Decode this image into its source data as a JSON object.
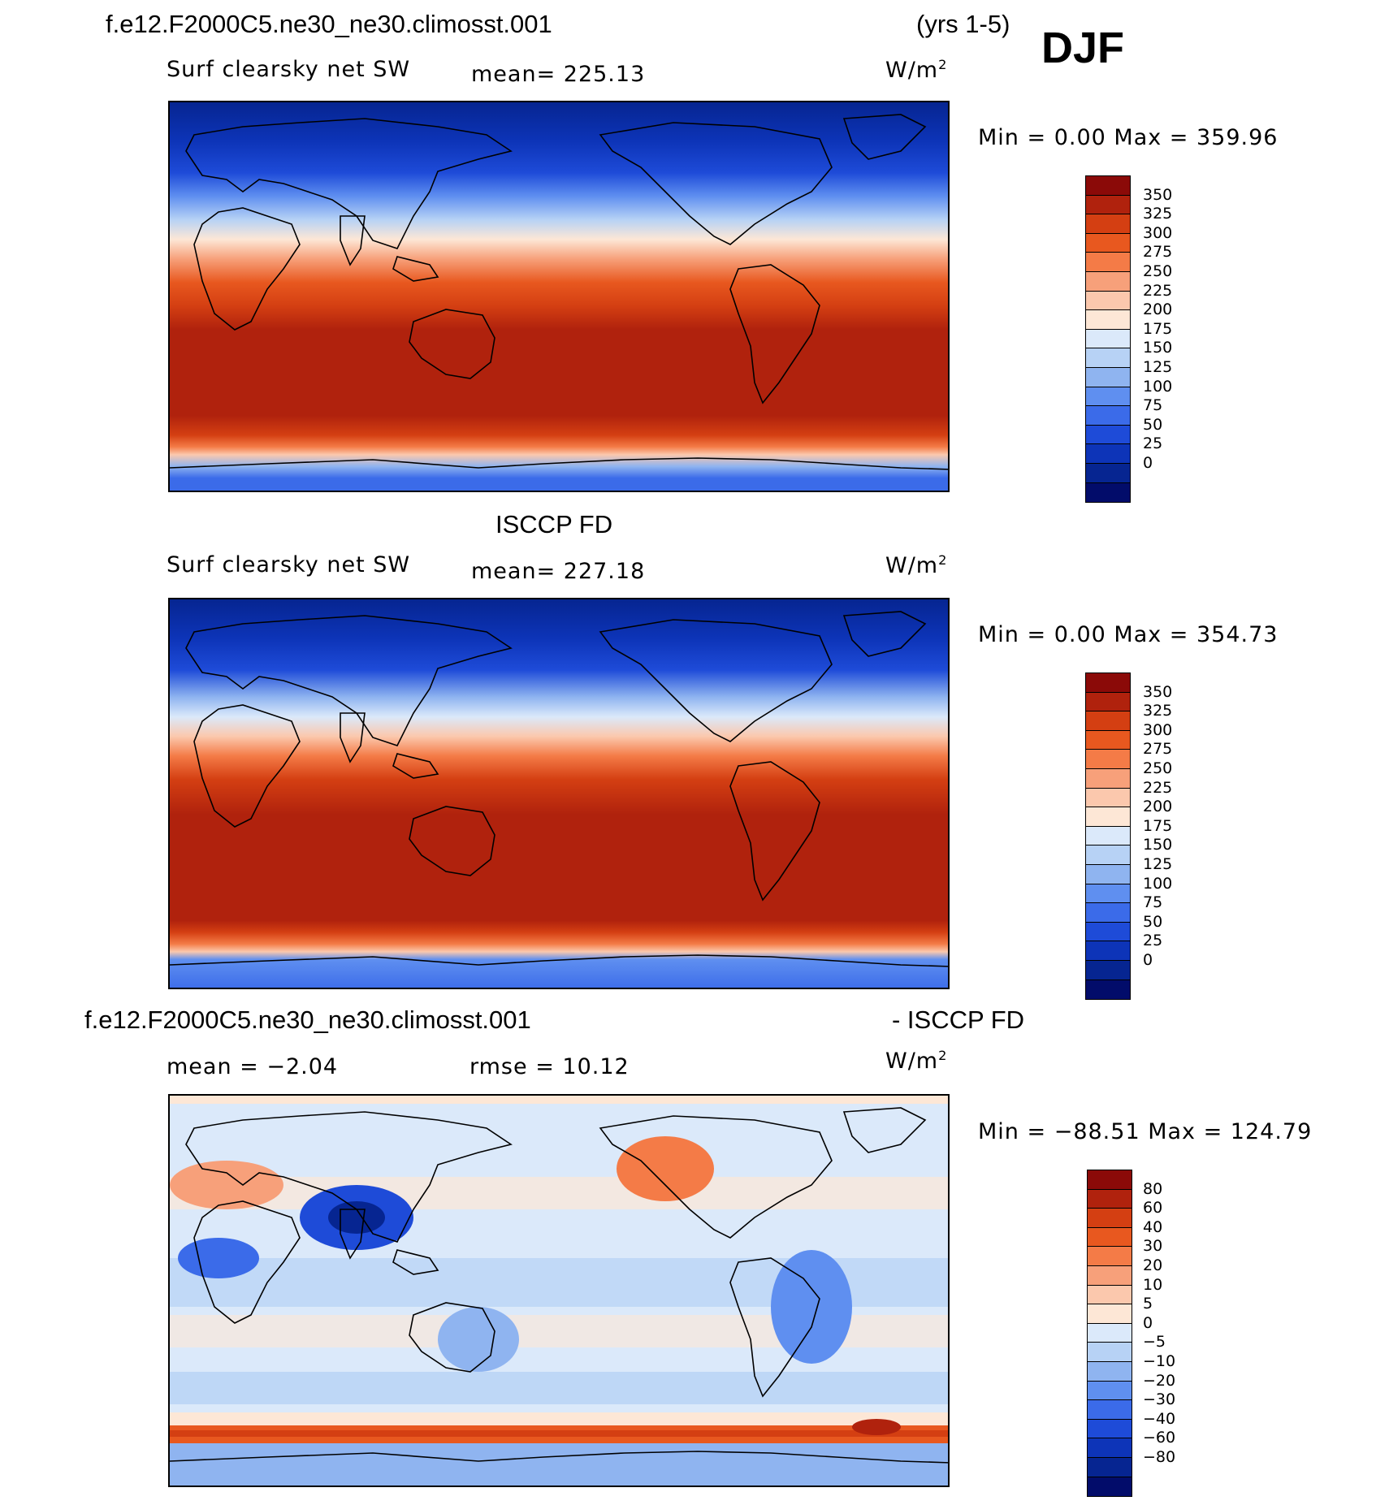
{
  "header": {
    "case_name": "f.e12.F2000C5.ne30_ne30.climosst.001",
    "years": "(yrs 1-5)",
    "season": "DJF"
  },
  "panels": [
    {
      "id": "model",
      "variable": "Surf clearsky net SW",
      "mean_text": "mean= 225.13",
      "units": "W/m",
      "units_exp": "2",
      "minmax_text": "Min =    0.00 Max = 359.96",
      "colorbar": {
        "colors": [
          "#8b0a08",
          "#b0220d",
          "#d43f12",
          "#e8581f",
          "#f47b47",
          "#f7a07a",
          "#fbc8ad",
          "#fde7d6",
          "#dbe9fa",
          "#b7d2f5",
          "#8fb4f0",
          "#5f8ff0",
          "#3b6be9",
          "#1e4bd8",
          "#0d34b8",
          "#062591",
          "#020c6a"
        ],
        "labels": [
          "350",
          "325",
          "300",
          "275",
          "250",
          "225",
          "200",
          "175",
          "150",
          "125",
          "100",
          "75",
          "50",
          "25",
          "0"
        ]
      }
    },
    {
      "id": "obs",
      "title": "ISCCP FD",
      "variable": "Surf clearsky net SW",
      "mean_text": "mean= 227.18",
      "units": "W/m",
      "units_exp": "2",
      "minmax_text": "Min =    0.00 Max = 354.73",
      "colorbar": {
        "colors": [
          "#8b0a08",
          "#b0220d",
          "#d43f12",
          "#e8581f",
          "#f47b47",
          "#f7a07a",
          "#fbc8ad",
          "#fde7d6",
          "#dbe9fa",
          "#b7d2f5",
          "#8fb4f0",
          "#5f8ff0",
          "#3b6be9",
          "#1e4bd8",
          "#0d34b8",
          "#062591",
          "#020c6a"
        ],
        "labels": [
          "350",
          "325",
          "300",
          "275",
          "250",
          "225",
          "200",
          "175",
          "150",
          "125",
          "100",
          "75",
          "50",
          "25",
          "0"
        ]
      }
    },
    {
      "id": "diff",
      "case_name": "f.e12.F2000C5.ne30_ne30.climosst.001",
      "minus_title": "- ISCCP FD",
      "mean_text": "mean =   −2.04",
      "rmse_text": "rmse =   10.12",
      "units": "W/m",
      "units_exp": "2",
      "minmax_text": "Min = −88.51  Max = 124.79",
      "colorbar": {
        "colors": [
          "#8b0a08",
          "#b0220d",
          "#d43f12",
          "#e8581f",
          "#f47b47",
          "#f7a07a",
          "#fbc8ad",
          "#fde7d6",
          "#dbe9fa",
          "#b7d2f5",
          "#8fb4f0",
          "#5f8ff0",
          "#3b6be9",
          "#1e4bd8",
          "#0d34b8",
          "#062591",
          "#020c6a"
        ],
        "labels": [
          "80",
          "60",
          "40",
          "30",
          "20",
          "10",
          "5",
          "0",
          "−5",
          "−10",
          "−20",
          "−30",
          "−40",
          "−60",
          "−80"
        ]
      }
    }
  ]
}
